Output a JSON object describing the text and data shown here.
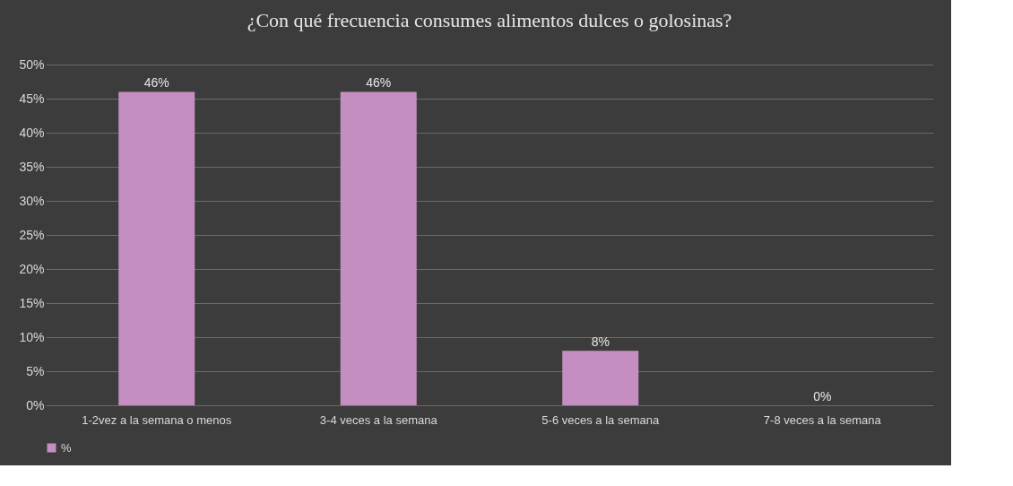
{
  "chart_data": {
    "type": "bar",
    "title": "¿Con qué frecuencia consumes alimentos dulces o golosinas?",
    "categories": [
      "1-2vez a la semana o menos",
      "3-4 veces a la semana",
      "5-6 veces a la semana",
      "7-8 veces a la semana"
    ],
    "series": [
      {
        "name": "%",
        "color": "#c48fc0",
        "values": [
          46,
          46,
          8,
          0
        ],
        "value_labels": [
          "46%",
          "46%",
          "8%",
          "0%"
        ]
      }
    ],
    "ylim": [
      0,
      50
    ],
    "yticks": [
      {
        "value": 0,
        "label": "0%"
      },
      {
        "value": 5,
        "label": "5%"
      },
      {
        "value": 10,
        "label": "10%"
      },
      {
        "value": 15,
        "label": "15%"
      },
      {
        "value": 20,
        "label": "20%"
      },
      {
        "value": 25,
        "label": "25%"
      },
      {
        "value": 30,
        "label": "30%"
      },
      {
        "value": 35,
        "label": "35%"
      },
      {
        "value": 40,
        "label": "40%"
      },
      {
        "value": 45,
        "label": "45%"
      },
      {
        "value": 50,
        "label": "50%"
      }
    ],
    "grid": true,
    "legend": "bottom"
  }
}
